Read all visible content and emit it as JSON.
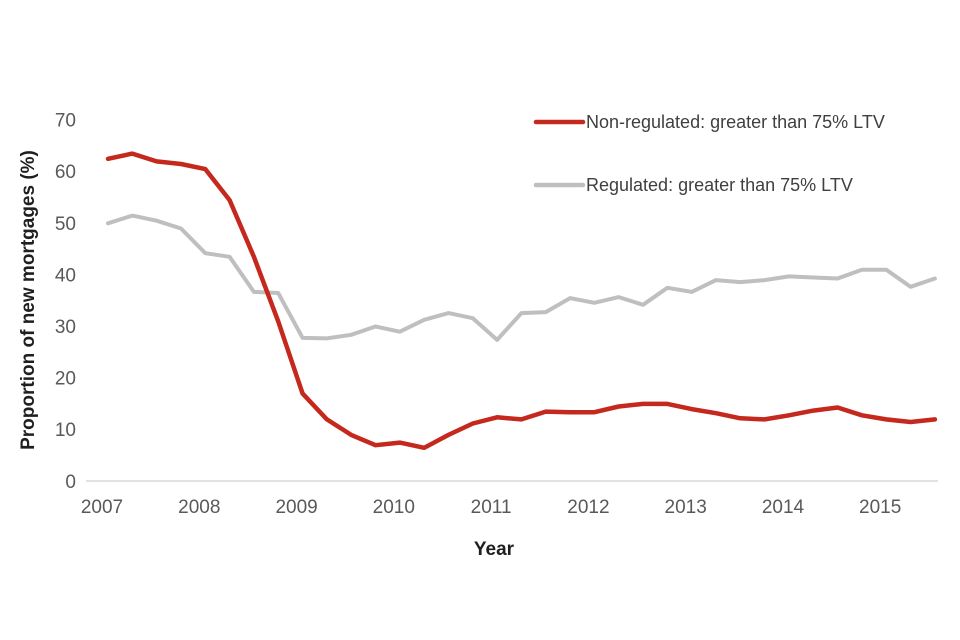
{
  "chart": {
    "y_axis_title": "Proportion of new mortgages (%)",
    "x_axis_title": "Year",
    "legend": [
      {
        "label": "Non-regulated: greater than 75% LTV",
        "color": "#c5281c"
      },
      {
        "label": "Regulated: greater than 75% LTV",
        "color": "#bfbfbf"
      }
    ]
  },
  "chart_data": {
    "type": "line",
    "title": "",
    "xlabel": "Year",
    "ylabel": "Proportion of new mortgages (%)",
    "ylim": [
      0,
      70
    ],
    "yticks": [
      0,
      10,
      20,
      30,
      40,
      50,
      60,
      70
    ],
    "xticklabels": [
      "2007",
      "2008",
      "2009",
      "2010",
      "2011",
      "2012",
      "2013",
      "2014",
      "2015"
    ],
    "grid": false,
    "legend_position": "upper right",
    "x": [
      "2007 Q1",
      "2007 Q2",
      "2007 Q3",
      "2007 Q4",
      "2008 Q1",
      "2008 Q2",
      "2008 Q3",
      "2008 Q4",
      "2009 Q1",
      "2009 Q2",
      "2009 Q3",
      "2009 Q4",
      "2010 Q1",
      "2010 Q2",
      "2010 Q3",
      "2010 Q4",
      "2011 Q1",
      "2011 Q2",
      "2011 Q3",
      "2011 Q4",
      "2012 Q1",
      "2012 Q2",
      "2012 Q3",
      "2012 Q4",
      "2013 Q1",
      "2013 Q2",
      "2013 Q3",
      "2013 Q4",
      "2014 Q1",
      "2014 Q2",
      "2014 Q3",
      "2014 Q4",
      "2015 Q1",
      "2015 Q2",
      "2015 Q3"
    ],
    "series": [
      {
        "name": "Non-regulated: greater than 75% LTV",
        "color": "#c5281c",
        "values": [
          62.5,
          63.5,
          62,
          61.5,
          60.5,
          54.5,
          43.5,
          31,
          17,
          12,
          9,
          7,
          7.5,
          6.5,
          9,
          11.2,
          12.4,
          12,
          13.5,
          13.4,
          13.4,
          14.5,
          15,
          15,
          14,
          13.2,
          12.2,
          12,
          12.8,
          13.7,
          14.3,
          12.8,
          12,
          11.5,
          12
        ]
      },
      {
        "name": "Regulated: greater than 75% LTV",
        "color": "#bfbfbf",
        "values": [
          50,
          51.5,
          50.5,
          49,
          44.2,
          43.5,
          36.7,
          36.5,
          27.8,
          27.7,
          28.4,
          30,
          29,
          31.3,
          32.6,
          31.6,
          27.4,
          32.6,
          32.8,
          35.5,
          34.6,
          35.7,
          34.2,
          37.5,
          36.7,
          39,
          38.6,
          39,
          39.7,
          39.5,
          39.3,
          41,
          41,
          37.7,
          39.3
        ]
      }
    ]
  }
}
